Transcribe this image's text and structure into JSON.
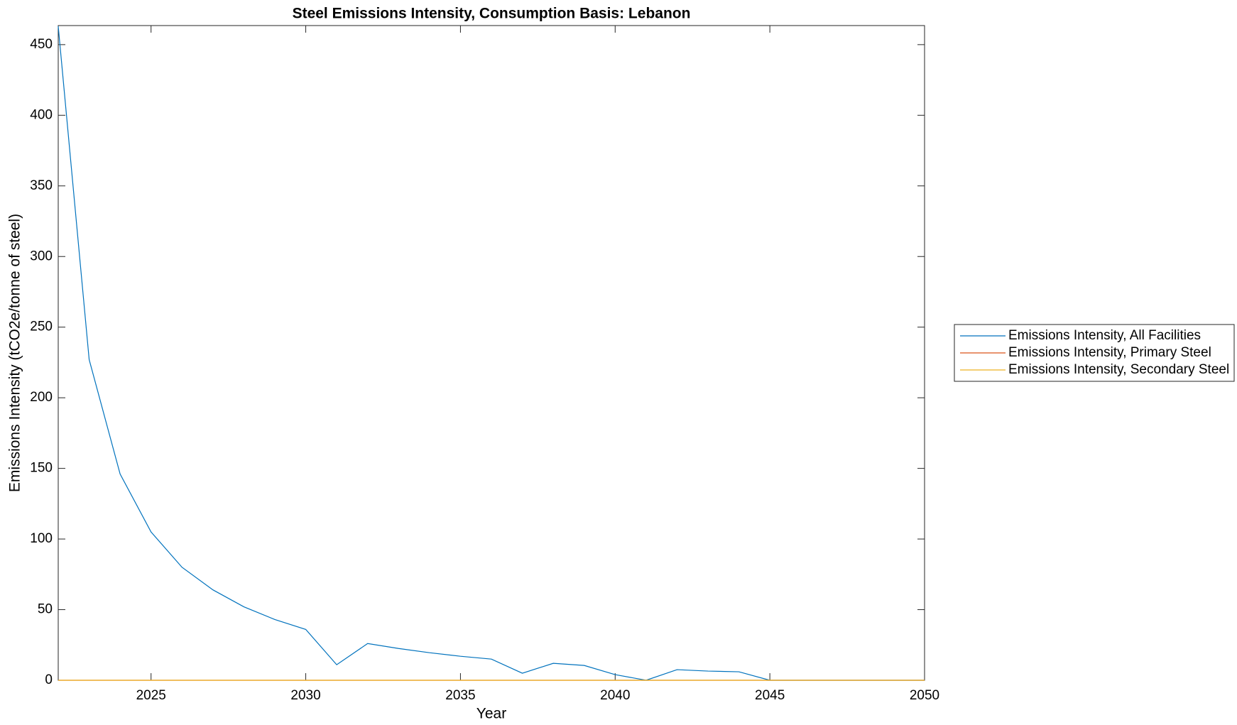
{
  "chart_data": {
    "type": "line",
    "title": "Steel Emissions Intensity, Consumption Basis: Lebanon",
    "x_label": "Year",
    "y_label": "Emissions Intensity (tCO2e/tonne of steel)",
    "x": [
      2022,
      2023,
      2024,
      2025,
      2026,
      2027,
      2028,
      2029,
      2030,
      2031,
      2032,
      2033,
      2034,
      2035,
      2036,
      2037,
      2038,
      2039,
      2040,
      2041,
      2042,
      2043,
      2044,
      2045,
      2046,
      2047,
      2048,
      2049,
      2050
    ],
    "series": [
      {
        "name": "Emissions Intensity, All Facilities",
        "color": "#0072bd",
        "values": [
          463,
          227,
          146,
          105,
          80,
          64,
          52,
          43,
          36,
          11,
          26,
          22.5,
          19.5,
          17,
          15,
          5,
          12,
          10.5,
          4,
          0,
          7.5,
          6.5,
          6,
          0,
          0,
          0,
          0,
          0,
          0
        ]
      },
      {
        "name": "Emissions Intensity, Primary Steel",
        "color": "#d95319",
        "values": [
          0,
          0,
          0,
          0,
          0,
          0,
          0,
          0,
          0,
          0,
          0,
          0,
          0,
          0,
          0,
          0,
          0,
          0,
          0,
          0,
          0,
          0,
          0,
          0,
          0,
          0,
          0,
          0,
          0
        ]
      },
      {
        "name": "Emissions Intensity, Secondary Steel",
        "color": "#edb120",
        "values": [
          0,
          0,
          0,
          0,
          0,
          0,
          0,
          0,
          0,
          0,
          0,
          0,
          0,
          0,
          0,
          0,
          0,
          0,
          0,
          0,
          0,
          0,
          0,
          0,
          0,
          0,
          0,
          0,
          0
        ]
      }
    ],
    "xlim": [
      2022,
      2050
    ],
    "xticks": [
      2025,
      2030,
      2035,
      2040,
      2045,
      2050
    ],
    "ylim": [
      0,
      463.5
    ],
    "yticks": [
      0,
      50,
      100,
      150,
      200,
      250,
      300,
      350,
      400,
      450
    ],
    "grid": false,
    "legend_position": "right"
  }
}
